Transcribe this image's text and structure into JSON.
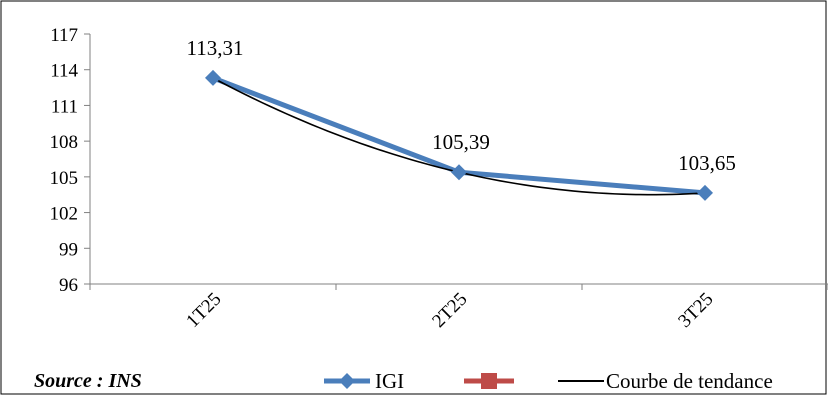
{
  "source": "Source : INS",
  "chart_data": {
    "type": "line",
    "categories": [
      "1T25",
      "2T25",
      "3T25"
    ],
    "series": [
      {
        "name": "IGI",
        "values": [
          113.31,
          105.39,
          103.65
        ],
        "labels": [
          "113,31",
          "105,39",
          "103,65"
        ],
        "color": "#4a7ebb"
      }
    ],
    "legend": {
      "position": "bottom",
      "entries": [
        "IGI",
        "",
        "Courbe de tendance"
      ],
      "colors": [
        "#4a7ebb",
        "#be4b48",
        "#000000"
      ]
    },
    "trendline": {
      "name": "Courbe de tendance",
      "color": "#000000"
    },
    "yticks": [
      "117",
      "114",
      "111",
      "108",
      "105",
      "102",
      "99",
      "96"
    ],
    "ylim": [
      96,
      117
    ],
    "ystep": 3,
    "grid": false,
    "title": "",
    "xlabel": "",
    "ylabel": ""
  }
}
